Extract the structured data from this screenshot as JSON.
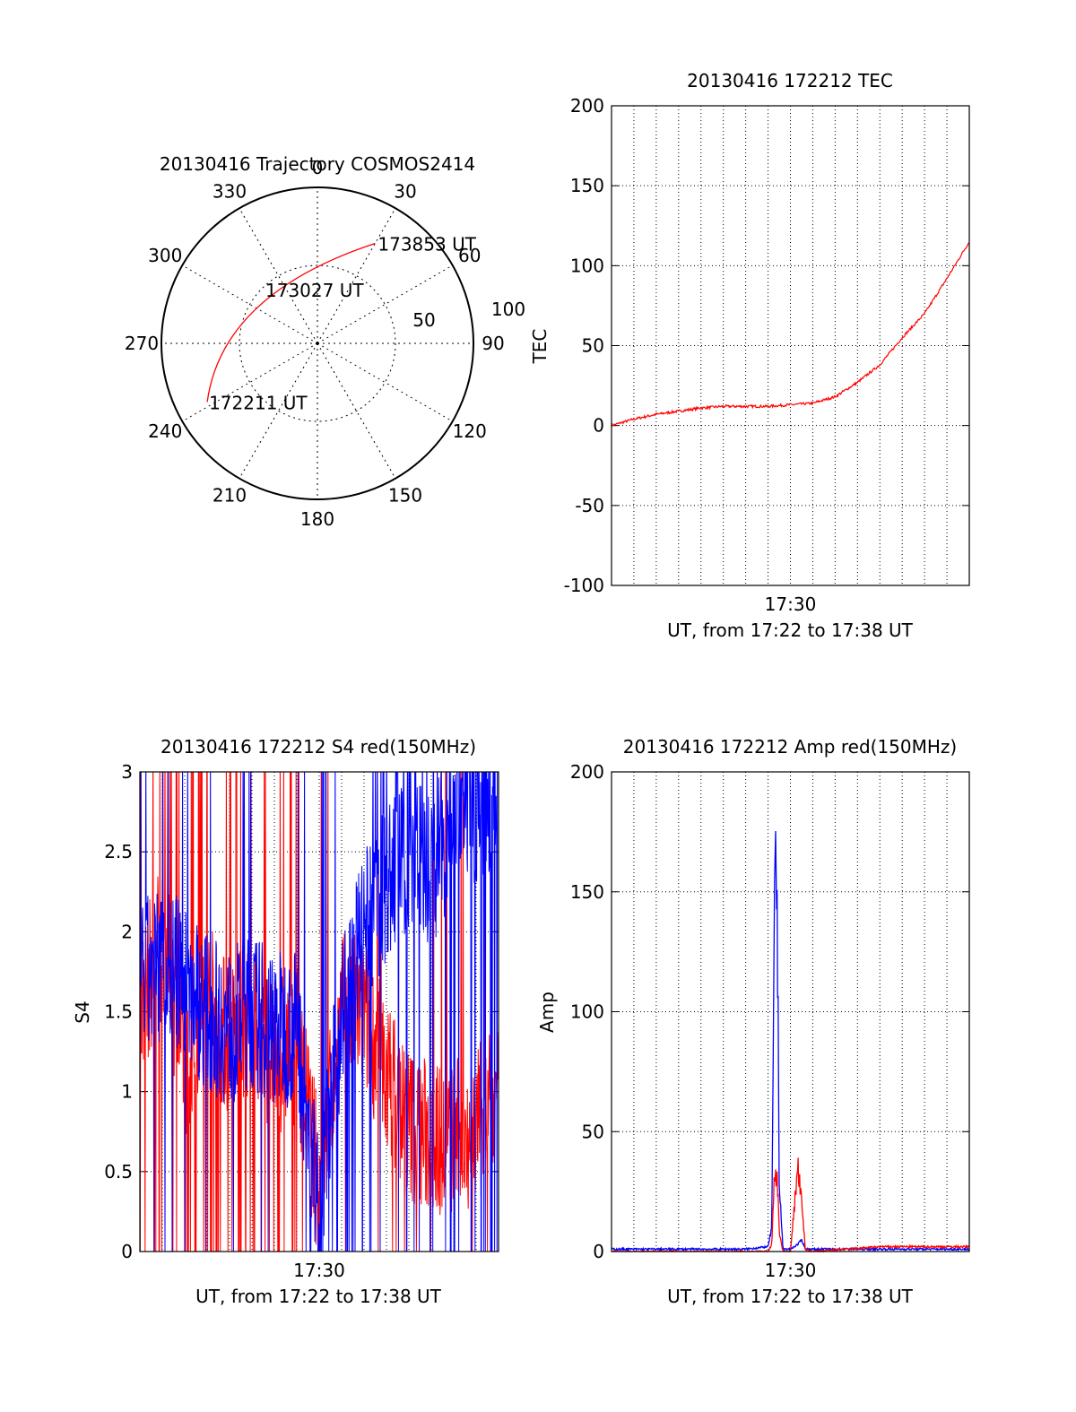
{
  "chart_data": [
    {
      "type": "polar",
      "title": "20130416 Trajectory COSMOS2414",
      "azimuth_labels": [
        "0",
        "30",
        "60",
        "90",
        "120",
        "150",
        "180",
        "210",
        "240",
        "270",
        "300",
        "330"
      ],
      "elevation_labels": [
        "50",
        "100"
      ],
      "track_color": "#ff0000",
      "track": {
        "start": {
          "label": "172211 UT",
          "azimuth": 242,
          "elevation": 20
        },
        "mid": {
          "label": "173027 UT",
          "azimuth": 300,
          "elevation": 55
        },
        "end": {
          "label": "173853 UT",
          "azimuth": 30,
          "elevation": 26
        }
      }
    },
    {
      "type": "line",
      "title": "20130416 172212 TEC",
      "xlabel": "UT, from 17:22 to 17:38 UT",
      "ylabel": "TEC",
      "xlim": [
        "17:22",
        "17:38"
      ],
      "ylim": [
        -100,
        200
      ],
      "yticks": [
        -100,
        -50,
        0,
        50,
        100,
        150,
        200
      ],
      "xtick_labels": [
        {
          "x": "17:30",
          "label": "17:30"
        }
      ],
      "grid": true,
      "series": [
        {
          "color": "#ff0000",
          "x": [
            "17:22",
            "17:23",
            "17:24",
            "17:25",
            "17:26",
            "17:27",
            "17:28",
            "17:29",
            "17:30",
            "17:31",
            "17:32",
            "17:33",
            "17:34",
            "17:35",
            "17:36",
            "17:37",
            "17:38"
          ],
          "values": [
            0,
            4,
            7,
            9,
            11,
            12,
            12,
            12,
            13,
            14,
            18,
            27,
            38,
            55,
            70,
            92,
            115
          ]
        }
      ]
    },
    {
      "type": "line",
      "title": "20130416 172212 S4 red(150MHz)",
      "xlabel": "UT, from 17:22 to 17:38 UT",
      "ylabel": "S4",
      "xlim": [
        "17:22",
        "17:38"
      ],
      "ylim": [
        0,
        3
      ],
      "yticks": [
        "0",
        "0.5",
        "1",
        "1.5",
        "2",
        "2.5",
        "3"
      ],
      "xtick_labels": [
        {
          "x": "17:30",
          "label": "17:30"
        }
      ],
      "grid": true,
      "series": [
        {
          "color": "#0000ff",
          "x": [
            "17:22",
            "17:23",
            "17:24",
            "17:25",
            "17:26",
            "17:27",
            "17:28",
            "17:29",
            "17:30",
            "17:31",
            "17:32",
            "17:33",
            "17:34",
            "17:35",
            "17:36",
            "17:37",
            "17:38"
          ],
          "values": [
            1.7,
            1.8,
            1.7,
            1.5,
            1.4,
            1.5,
            1.4,
            1.4,
            0.2,
            1.5,
            2.0,
            2.3,
            2.5,
            2.4,
            2.7,
            2.8,
            2.9
          ]
        },
        {
          "color": "#ff0000",
          "x": [
            "17:22",
            "17:23",
            "17:24",
            "17:25",
            "17:26",
            "17:27",
            "17:28",
            "17:29",
            "17:30",
            "17:31",
            "17:32",
            "17:33",
            "17:34",
            "17:35",
            "17:36",
            "17:37",
            "17:38"
          ],
          "values": [
            1.5,
            2.0,
            1.2,
            1.6,
            1.3,
            1.5,
            1.2,
            1.3,
            0.4,
            1.5,
            1.5,
            1.1,
            0.8,
            0.7,
            0.7,
            0.8,
            0.9
          ]
        }
      ]
    },
    {
      "type": "line",
      "title": "20130416 172212 Amp red(150MHz)",
      "xlabel": "UT, from 17:22 to 17:38 UT",
      "ylabel": "Amp",
      "xlim": [
        "17:22",
        "17:38"
      ],
      "ylim": [
        0,
        200
      ],
      "yticks": [
        0,
        50,
        100,
        150,
        200
      ],
      "xtick_labels": [
        {
          "x": "17:30",
          "label": "17:30"
        }
      ],
      "grid": true,
      "series": [
        {
          "color": "#0000ff",
          "x": [
            "17:22",
            "17:25",
            "17:28",
            "17:29",
            "17:29:10",
            "17:29:15",
            "17:29:20",
            "17:29:25",
            "17:29:30",
            "17:29:40",
            "17:30",
            "17:30:20",
            "17:30:30",
            "17:30:40",
            "17:31",
            "17:34",
            "17:38"
          ],
          "values": [
            1,
            1,
            1,
            2,
            10,
            95,
            181,
            135,
            30,
            1,
            1,
            3,
            5,
            1,
            1,
            1,
            1
          ]
        },
        {
          "color": "#ff0000",
          "x": [
            "17:22",
            "17:25",
            "17:28",
            "17:29",
            "17:29:10",
            "17:29:15",
            "17:29:20",
            "17:29:25",
            "17:29:30",
            "17:29:40",
            "17:30",
            "17:30:20",
            "17:30:30",
            "17:30:40",
            "17:31",
            "17:34",
            "17:38"
          ],
          "values": [
            0,
            0,
            0,
            0,
            3,
            25,
            33,
            30,
            8,
            0,
            0,
            35,
            20,
            1,
            0,
            2,
            2
          ]
        }
      ]
    }
  ]
}
